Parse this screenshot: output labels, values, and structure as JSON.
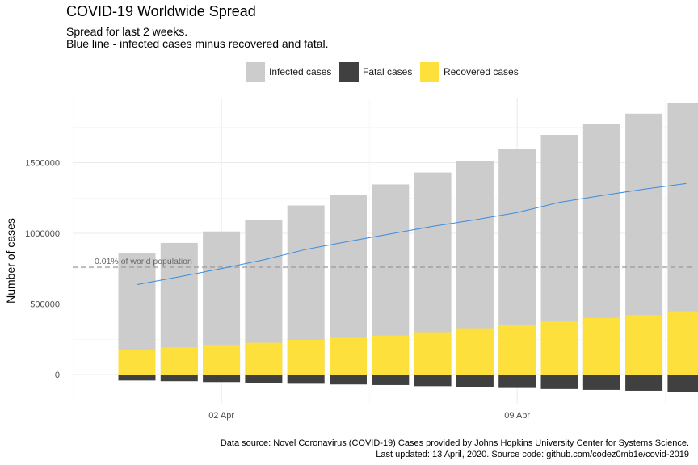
{
  "title": "COVID-19 Worldwide Spread",
  "subtitle_line1": "Spread for last 2 weeks.",
  "subtitle_line2": "Blue line - infected cases minus recovered and fatal.",
  "caption_line1": "Data source: Novel Coronavirus (COVID-19) Cases provided by Johns Hopkins University Center for Systems Science.",
  "caption_line2": "Last updated: 13 April, 2020. Source code: github.com/codez0mb1e/covid-2019",
  "legend": [
    {
      "label": "Infected cases",
      "color": "#cccccc"
    },
    {
      "label": "Fatal cases",
      "color": "#404040"
    },
    {
      "label": "Recovered cases",
      "color": "#fde03c"
    }
  ],
  "chart_data": {
    "type": "bar",
    "ylabel": "Number of cases",
    "ylim": [
      -120000,
      1900000
    ],
    "y_ticks": [
      0,
      500000,
      1000000,
      1500000
    ],
    "y_tick_labels": [
      "0",
      "500000",
      "1000000",
      "1500000"
    ],
    "x_tick_labels": [
      "02 Apr",
      "09 Apr"
    ],
    "x_tick_dates": [
      "2020-03-31",
      "2020-04-01",
      "2020-04-02",
      "2020-04-03",
      "2020-04-04",
      "2020-04-05",
      "2020-04-06",
      "2020-04-07",
      "2020-04-08",
      "2020-04-09",
      "2020-04-10",
      "2020-04-11",
      "2020-04-12",
      "2020-04-13"
    ],
    "dates": [
      "2020-03-31",
      "2020-04-01",
      "2020-04-02",
      "2020-04-03",
      "2020-04-04",
      "2020-04-05",
      "2020-04-06",
      "2020-04-07",
      "2020-04-08",
      "2020-04-09",
      "2020-04-10",
      "2020-04-11",
      "2020-04-12",
      "2020-04-13"
    ],
    "grid": true,
    "legend_position": "top",
    "series": [
      {
        "name": "Infected cases",
        "color": "#cccccc",
        "values": [
          857000,
          932000,
          1013000,
          1096000,
          1197000,
          1272000,
          1346000,
          1431000,
          1512000,
          1596000,
          1697000,
          1777000,
          1847000,
          1920000
        ]
      },
      {
        "name": "Fatal cases",
        "color": "#404040",
        "values": [
          -42000,
          -47000,
          -53000,
          -59000,
          -65000,
          -70000,
          -74000,
          -82000,
          -88000,
          -95000,
          -102000,
          -108000,
          -114000,
          -120000
        ]
      },
      {
        "name": "Recovered cases",
        "color": "#fde03c",
        "values": [
          178000,
          193000,
          210000,
          225000,
          246000,
          260000,
          276000,
          300000,
          328000,
          354000,
          376000,
          402000,
          421000,
          448000
        ]
      },
      {
        "color": "#3a8dde",
        "kind": "line",
        "values": [
          637000,
          692000,
          750000,
          812000,
          886000,
          942000,
          996000,
          1049000,
          1096000,
          1147000,
          1219000,
          1267000,
          1312000,
          1352000
        ]
      }
    ],
    "reference_line": {
      "value": 760000,
      "label": "0.01% of world population",
      "color": "#999999"
    }
  }
}
